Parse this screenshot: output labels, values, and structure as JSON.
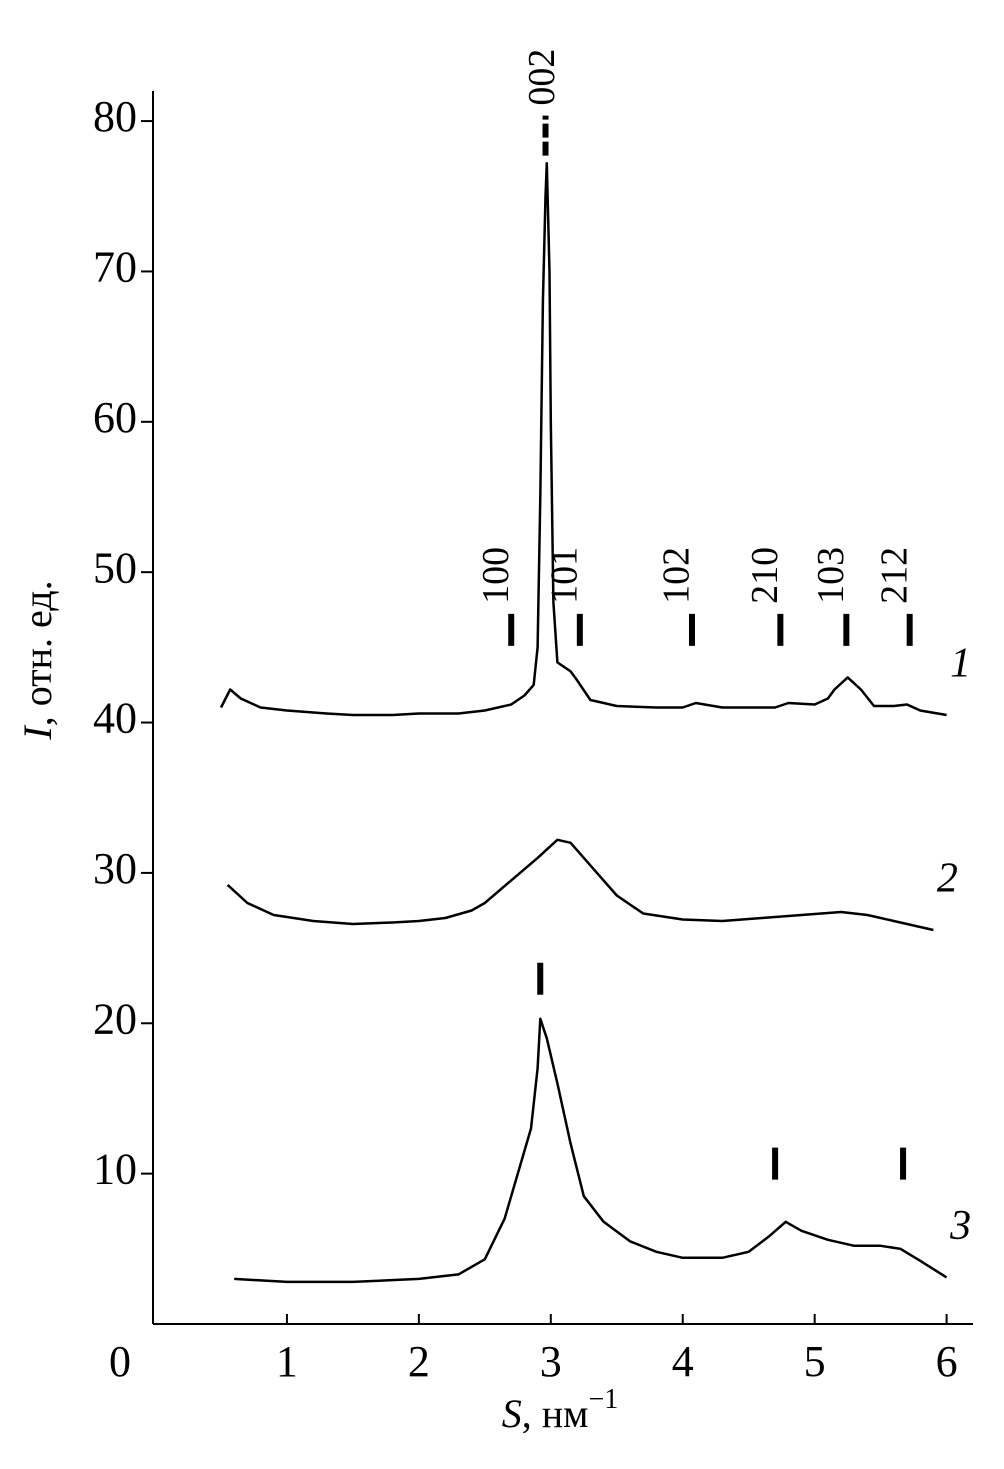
{
  "chart_data": {
    "type": "line",
    "xlabel": {
      "var": "S",
      "unit": ", нм",
      "sup": "−1"
    },
    "ylabel": {
      "var": "I",
      "unit": ", отн. ед."
    },
    "xlim": [
      0,
      6.2
    ],
    "ylim": [
      0,
      82
    ],
    "xticks": [
      0,
      1,
      2,
      3,
      4,
      5,
      6
    ],
    "yticks": [
      10,
      20,
      30,
      40,
      50,
      60,
      70,
      80
    ],
    "color": "#000000",
    "series": [
      {
        "name": "1",
        "x": [
          0.5,
          0.57,
          0.65,
          0.8,
          1.0,
          1.3,
          1.5,
          1.8,
          2.0,
          2.3,
          2.5,
          2.7,
          2.8,
          2.87,
          2.9,
          2.92,
          2.94,
          2.96,
          2.97,
          2.99,
          3.0,
          3.02,
          3.05,
          3.1,
          3.15,
          3.2,
          3.3,
          3.5,
          3.8,
          4.0,
          4.1,
          4.3,
          4.5,
          4.7,
          4.8,
          5.0,
          5.1,
          5.15,
          5.25,
          5.35,
          5.45,
          5.6,
          5.7,
          5.8,
          6.0
        ],
        "values": [
          41,
          42.2,
          41.6,
          41,
          40.8,
          40.6,
          40.5,
          40.5,
          40.6,
          40.6,
          40.8,
          41.2,
          41.8,
          42.5,
          45,
          55,
          68,
          75,
          77.2,
          70,
          60,
          48,
          44,
          43.7,
          43.4,
          42.8,
          41.5,
          41.1,
          41,
          41,
          41.3,
          41,
          41,
          41,
          41.3,
          41.2,
          41.6,
          42.2,
          43,
          42.2,
          41.1,
          41.1,
          41.2,
          40.8,
          40.5
        ]
      },
      {
        "name": "2",
        "x": [
          0.55,
          0.7,
          0.9,
          1.2,
          1.5,
          1.8,
          2.0,
          2.2,
          2.4,
          2.5,
          2.7,
          2.9,
          3.0,
          3.05,
          3.15,
          3.3,
          3.5,
          3.7,
          4.0,
          4.3,
          4.6,
          4.9,
          5.2,
          5.4,
          5.6,
          5.9
        ],
        "values": [
          29.2,
          28,
          27.2,
          26.8,
          26.6,
          26.7,
          26.8,
          27,
          27.5,
          28,
          29.5,
          31,
          31.8,
          32.2,
          32,
          30.5,
          28.5,
          27.3,
          26.9,
          26.8,
          27,
          27.2,
          27.4,
          27.2,
          26.8,
          26.2
        ]
      },
      {
        "name": "3",
        "x": [
          0.6,
          1.0,
          1.5,
          2.0,
          2.3,
          2.5,
          2.65,
          2.75,
          2.85,
          2.9,
          2.92,
          2.97,
          3.05,
          3.15,
          3.25,
          3.4,
          3.6,
          3.8,
          4.0,
          4.3,
          4.5,
          4.65,
          4.78,
          4.9,
          5.1,
          5.3,
          5.5,
          5.65,
          5.8,
          6.0
        ],
        "values": [
          3,
          2.8,
          2.8,
          3,
          3.3,
          4.3,
          7,
          10,
          13,
          17,
          20.3,
          19,
          16,
          12,
          8.5,
          6.8,
          5.5,
          4.8,
          4.4,
          4.4,
          4.8,
          5.8,
          6.8,
          6.2,
          5.6,
          5.2,
          5.2,
          5,
          4.2,
          3.1
        ]
      }
    ],
    "markers": [
      {
        "x": 2.96,
        "y": 77.7,
        "label": "002"
      },
      {
        "x": 2.7,
        "y": 45.1,
        "label": "100"
      },
      {
        "x": 3.22,
        "y": 45.1,
        "label": "101"
      },
      {
        "x": 4.07,
        "y": 45.1,
        "label": "102"
      },
      {
        "x": 4.74,
        "y": 45.1,
        "label": "210"
      },
      {
        "x": 5.24,
        "y": 45.1,
        "label": "103"
      },
      {
        "x": 5.72,
        "y": 45.1,
        "label": "212"
      },
      {
        "x": 2.92,
        "y": 21.9
      },
      {
        "x": 4.7,
        "y": 9.6
      },
      {
        "x": 5.67,
        "y": 9.6
      }
    ]
  }
}
